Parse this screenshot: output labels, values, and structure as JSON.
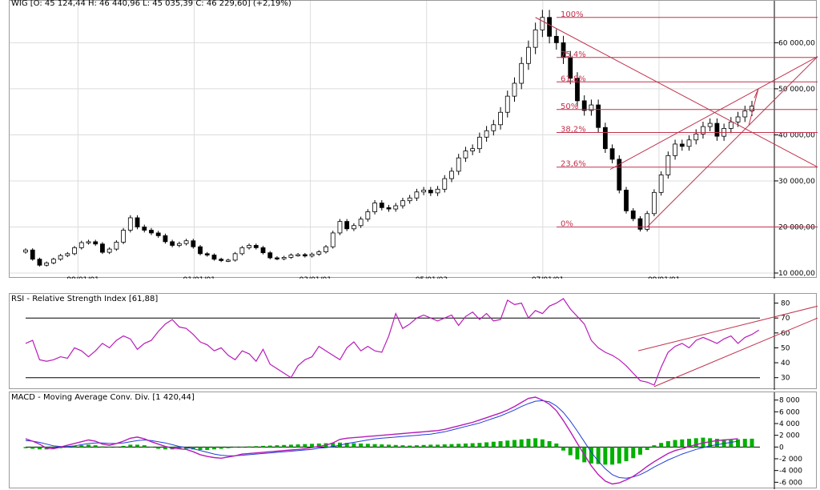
{
  "colors": {
    "fib": "#c0334e",
    "rsi": "#b81cb8",
    "macd_line": "#b81cb8",
    "signal_line": "#1f3fd6",
    "histogram": "#00b000",
    "grid": "#dcdcdc",
    "up_candle": "#ffffff",
    "down_candle": "#000000"
  },
  "price_panel": {
    "header": "WIG [O: 45 124,44  H: 46 440,96  L: 45 035,39  C: 46 229,60] (+2,19%)",
    "x_ticks": [
      "99/01/01",
      "01/01/01",
      "03/01/01",
      "05/01/03",
      "07/01/01",
      "09/01/01"
    ],
    "y_ticks": [
      "10 000,00",
      "20 000,00",
      "30 000,00",
      "40 000,00",
      "50 000,00",
      "60 000,00"
    ],
    "fib_labels": [
      "100%",
      "75,4%",
      "61,8%",
      "50%",
      "38,2%",
      "23,6%",
      "0%"
    ]
  },
  "rsi_panel": {
    "header": "RSI - Relative Strength Index [61,88]",
    "y_ticks": [
      "30",
      "40",
      "50",
      "60",
      "70",
      "80"
    ]
  },
  "macd_panel": {
    "header": "MACD - Moving Average Conv. Div. [1 420,44]",
    "y_ticks": [
      "-6 000",
      "-4 000",
      "-2 000",
      "0",
      "2 000",
      "4 000",
      "6 000",
      "8 000"
    ]
  },
  "chart_data": [
    {
      "type": "candlestick",
      "x_date_range": [
        "1998-03",
        "2009-10"
      ],
      "ylim": [
        10000,
        68000
      ],
      "close": [
        15000,
        13000,
        11700,
        12200,
        13000,
        13800,
        14200,
        15500,
        16600,
        16800,
        16300,
        14500,
        15200,
        16700,
        19300,
        22000,
        20000,
        19300,
        18700,
        18100,
        16800,
        16000,
        16400,
        17000,
        15700,
        14200,
        13900,
        13000,
        12700,
        12800,
        14200,
        15500,
        16000,
        15500,
        14400,
        13300,
        13100,
        13400,
        13900,
        14000,
        13700,
        14100,
        14600,
        15700,
        18700,
        21200,
        19600,
        20300,
        21700,
        23300,
        25200,
        24200,
        23900,
        24600,
        25700,
        26300,
        27600,
        28000,
        27400,
        28200,
        30500,
        32100,
        35000,
        36500,
        37000,
        39500,
        40900,
        42200,
        44900,
        48400,
        51200,
        55500,
        59000,
        62800,
        65500,
        61400,
        60000,
        56800,
        52300,
        47400,
        45300,
        46500,
        41600,
        37000,
        34700,
        28000,
        23500,
        21800,
        19500,
        22900,
        27500,
        31300,
        35500,
        38000,
        37500,
        38900,
        40200,
        41800,
        42500,
        39700,
        41400,
        42800,
        43900,
        45200,
        46230
      ],
      "y_label_note": "values read from the price axis"
    },
    {
      "type": "line",
      "title": "RSI",
      "ylim": [
        20,
        85
      ],
      "guide_lines": [
        30,
        70
      ],
      "values": [
        53,
        55,
        42,
        41,
        42,
        44,
        43,
        50,
        48,
        44,
        48,
        53,
        50,
        55,
        58,
        56,
        49,
        53,
        55,
        61,
        66,
        69,
        64,
        63,
        59,
        54,
        52,
        48,
        50,
        45,
        42,
        48,
        46,
        41,
        49,
        39,
        36,
        33,
        30,
        38,
        42,
        44,
        51,
        48,
        45,
        42,
        50,
        54,
        48,
        51,
        48,
        47,
        58,
        73,
        63,
        66,
        70,
        72,
        70,
        68,
        70,
        72,
        65,
        71,
        74,
        69,
        73,
        68,
        69,
        82,
        79,
        80,
        70,
        75,
        73,
        78,
        80,
        83,
        76,
        71,
        66,
        55,
        50,
        47,
        45,
        42,
        38,
        33,
        28,
        27,
        25,
        37,
        47,
        51,
        53,
        50,
        55,
        57,
        55,
        53,
        56,
        58,
        53,
        57,
        59,
        61.88
      ]
    },
    {
      "type": "line+bar",
      "title": "MACD",
      "ylim": [
        -6500,
        8500
      ],
      "series": [
        {
          "kind": "line",
          "values": [
            1400,
            1000,
            500,
            -200,
            -300,
            0,
            300,
            600,
            900,
            1200,
            1000,
            500,
            300,
            600,
            1000,
            1500,
            1700,
            1400,
            900,
            500,
            100,
            -200,
            -300,
            -400,
            -800,
            -1300,
            -1600,
            -1800,
            -1900,
            -1700,
            -1500,
            -1200,
            -1100,
            -1000,
            -900,
            -800,
            -700,
            -600,
            -500,
            -400,
            -300,
            -100,
            100,
            300,
            700,
            1300,
            1500,
            1600,
            1700,
            1800,
            1900,
            2000,
            2100,
            2200,
            2300,
            2400,
            2500,
            2600,
            2700,
            2800,
            3000,
            3300,
            3600,
            3900,
            4200,
            4600,
            5000,
            5400,
            5800,
            6300,
            6900,
            7600,
            8300,
            8500,
            8000,
            7300,
            6200,
            4500,
            2600,
            600,
            -1300,
            -3200,
            -4700,
            -5800,
            -6300,
            -6100,
            -5600,
            -5000,
            -4200,
            -3300,
            -2500,
            -1800,
            -1100,
            -600,
            -300,
            100,
            400,
            700,
            900,
            1100,
            1200,
            1300,
            1420
          ]
        },
        {
          "kind": "line",
          "values": [
            1100,
            1000,
            800,
            500,
            200,
            100,
            100,
            200,
            400,
            600,
            700,
            700,
            600,
            600,
            700,
            900,
            1100,
            1200,
            1100,
            900,
            700,
            400,
            100,
            -100,
            -300,
            -600,
            -900,
            -1200,
            -1400,
            -1500,
            -1500,
            -1400,
            -1300,
            -1200,
            -1100,
            -1000,
            -900,
            -800,
            -700,
            -600,
            -500,
            -400,
            -200,
            -100,
            100,
            300,
            600,
            800,
            1000,
            1200,
            1400,
            1500,
            1600,
            1700,
            1800,
            1900,
            2000,
            2100,
            2200,
            2400,
            2600,
            2900,
            3200,
            3500,
            3800,
            4100,
            4500,
            4900,
            5300,
            5800,
            6300,
            6900,
            7400,
            7800,
            7900,
            7700,
            7000,
            5900,
            4400,
            2700,
            900,
            -900,
            -2400,
            -3700,
            -4700,
            -5200,
            -5300,
            -5100,
            -4700,
            -4100,
            -3400,
            -2800,
            -2200,
            -1700,
            -1200,
            -800,
            -400,
            -100,
            200,
            400,
            600,
            800,
            1000
          ]
        },
        {
          "kind": "histogram",
          "values": [
            -200,
            -300,
            -400,
            -400,
            -300,
            -200,
            100,
            200,
            300,
            400,
            300,
            100,
            -100,
            0,
            200,
            400,
            400,
            300,
            -100,
            -300,
            -400,
            -400,
            -300,
            -300,
            -400,
            -500,
            -500,
            -400,
            -300,
            -200,
            -100,
            0,
            100,
            150,
            200,
            250,
            300,
            350,
            400,
            450,
            500,
            550,
            600,
            650,
            700,
            750,
            700,
            650,
            600,
            550,
            500,
            450,
            400,
            350,
            300,
            250,
            300,
            350,
            400,
            400,
            450,
            500,
            550,
            600,
            650,
            700,
            800,
            900,
            1000,
            1100,
            1200,
            1300,
            1400,
            1500,
            1300,
            1000,
            600,
            -600,
            -1400,
            -2100,
            -2600,
            -2800,
            -2900,
            -3000,
            -3000,
            -2800,
            -2400,
            -1900,
            -1300,
            -500,
            300,
            700,
            1000,
            1200,
            1300,
            1400,
            1500,
            1600,
            1500,
            1400,
            1300,
            1200,
            1300,
            1400,
            1420
          ]
        }
      ]
    }
  ]
}
